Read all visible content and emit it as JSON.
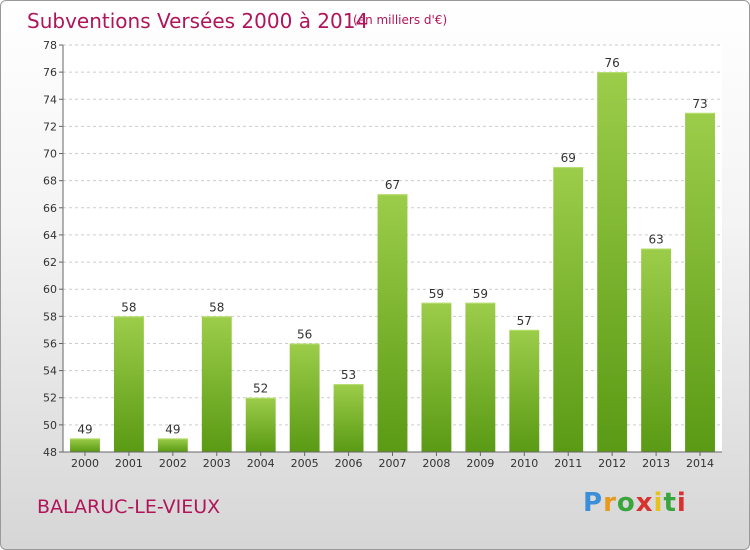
{
  "header": {
    "title": "Subventions Versées 2000 à 2014",
    "subtitle": "(en milliers d'€)"
  },
  "footer": {
    "commune": "BALARUC-LE-VIEUX",
    "logo": "Proxiti"
  },
  "colors": {
    "title": "#b0155b",
    "bar_light": "#9ccd4a",
    "bar_dark": "#5a9a14",
    "grid": "#cccccc"
  },
  "chart_data": {
    "type": "bar",
    "categories": [
      "2000",
      "2001",
      "2002",
      "2003",
      "2004",
      "2005",
      "2006",
      "2007",
      "2008",
      "2009",
      "2010",
      "2011",
      "2012",
      "2013",
      "2014"
    ],
    "values": [
      49,
      58,
      49,
      58,
      52,
      56,
      53,
      67,
      59,
      59,
      57,
      69,
      76,
      63,
      73
    ],
    "title": "Subventions Versées 2000 à 2014",
    "subtitle": "(en milliers d'€)",
    "ylim": [
      48,
      78
    ],
    "yticks": [
      48,
      50,
      52,
      54,
      56,
      58,
      60,
      62,
      64,
      66,
      68,
      70,
      72,
      74,
      76,
      78
    ],
    "grid": true,
    "data_labels": true
  }
}
